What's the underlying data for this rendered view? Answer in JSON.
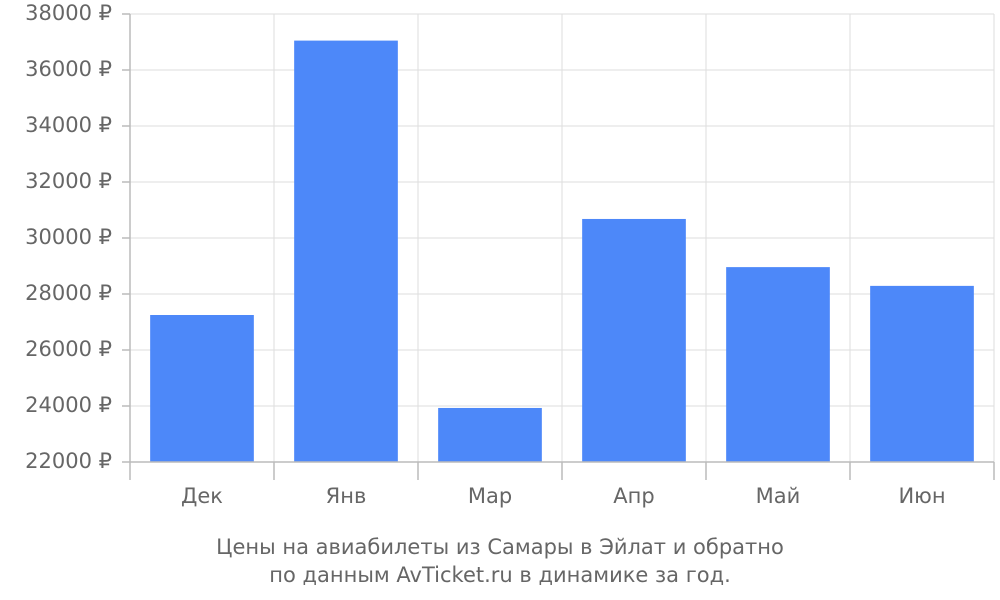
{
  "chart_data": {
    "type": "bar",
    "title": "Цены на авиабилеты из Самары в Эйлат и обратно",
    "subtitle": "по данным AvTicket.ru в динамике за год.",
    "categories": [
      "Дек",
      "Янв",
      "Мар",
      "Апр",
      "Май",
      "Июн"
    ],
    "values": [
      27250,
      37050,
      23930,
      30680,
      28960,
      28290
    ],
    "color": "#4d88f9",
    "ylim": [
      22000,
      38000
    ],
    "yticks": [
      {
        "value": 22000,
        "label": "22000 ₽"
      },
      {
        "value": 24000,
        "label": "24000 ₽"
      },
      {
        "value": 26000,
        "label": "26000 ₽"
      },
      {
        "value": 28000,
        "label": "28000 ₽"
      },
      {
        "value": 30000,
        "label": "30000 ₽"
      },
      {
        "value": 32000,
        "label": "32000 ₽"
      },
      {
        "value": 34000,
        "label": "34000 ₽"
      },
      {
        "value": 36000,
        "label": "36000 ₽"
      },
      {
        "value": 38000,
        "label": "38000 ₽"
      }
    ],
    "grid": true
  }
}
